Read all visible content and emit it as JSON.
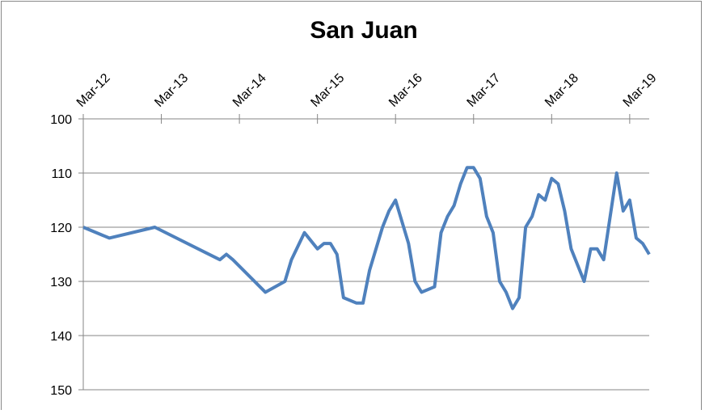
{
  "chart_data": {
    "type": "line",
    "title": "San Juan",
    "x": [
      "2012-03",
      "2012-07",
      "2013-02",
      "2013-12",
      "2014-01",
      "2014-02",
      "2014-07",
      "2014-10",
      "2014-11",
      "2015-01",
      "2015-03",
      "2015-04",
      "2015-05",
      "2015-06",
      "2015-07",
      "2015-09",
      "2015-10",
      "2015-11",
      "2016-01",
      "2016-02",
      "2016-03",
      "2016-05",
      "2016-06",
      "2016-07",
      "2016-09",
      "2016-10",
      "2016-11",
      "2016-12",
      "2017-01",
      "2017-02",
      "2017-03",
      "2017-04",
      "2017-05",
      "2017-06",
      "2017-07",
      "2017-08",
      "2017-09",
      "2017-10",
      "2017-11",
      "2017-12",
      "2018-01",
      "2018-02",
      "2018-03",
      "2018-04",
      "2018-05",
      "2018-06",
      "2018-08",
      "2018-09",
      "2018-10",
      "2018-11",
      "2018-12",
      "2019-01",
      "2019-02",
      "2019-03",
      "2019-04",
      "2019-05",
      "2019-06"
    ],
    "series": [
      {
        "color": "#4f81bd",
        "values": [
          120,
          122,
          120,
          126,
          125,
          126,
          132,
          130,
          126,
          121,
          124,
          123,
          123,
          125,
          133,
          134,
          134,
          128,
          120,
          117,
          115,
          123,
          130,
          132,
          131,
          121,
          118,
          116,
          112,
          109,
          109,
          111,
          118,
          121,
          130,
          132,
          135,
          133,
          120,
          118,
          114,
          115,
          111,
          112,
          117,
          124,
          130,
          124,
          124,
          126,
          118,
          110,
          117,
          115,
          122,
          123,
          125
        ]
      }
    ],
    "xlim": [
      "2012-03",
      "2019-06"
    ],
    "xticks": [
      {
        "value": "2012-03",
        "label": "Mar-12"
      },
      {
        "value": "2013-03",
        "label": "Mar-13"
      },
      {
        "value": "2014-03",
        "label": "Mar-14"
      },
      {
        "value": "2015-03",
        "label": "Mar-15"
      },
      {
        "value": "2016-03",
        "label": "Mar-16"
      },
      {
        "value": "2017-03",
        "label": "Mar-17"
      },
      {
        "value": "2018-03",
        "label": "Mar-18"
      },
      {
        "value": "2019-03",
        "label": "Mar-19"
      }
    ],
    "ylim": [
      100,
      150
    ],
    "yticks": [
      100,
      110,
      120,
      130,
      140,
      150
    ],
    "y_reversed": true,
    "grid": true
  }
}
